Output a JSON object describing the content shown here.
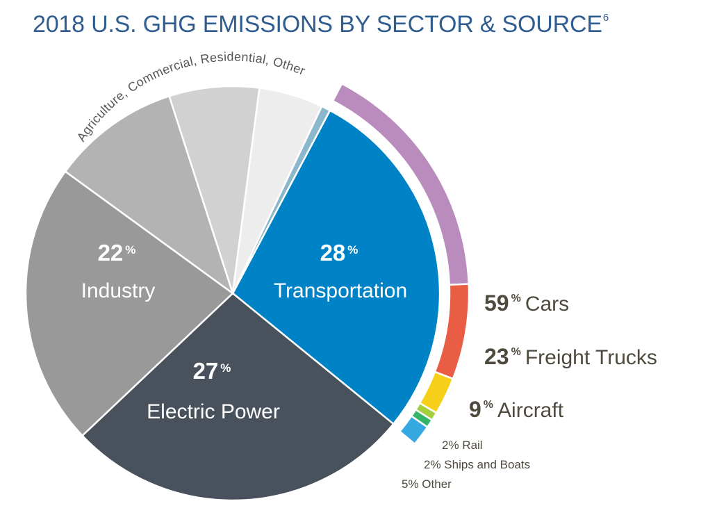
{
  "title": "2018 U.S. GHG EMISSIONS BY SECTOR & SOURCE",
  "title_sup": "6",
  "chart_data": {
    "type": "pie",
    "sectors": [
      {
        "name": "Transportation",
        "pct_value": "28",
        "value": 28,
        "color": "#0083c6",
        "label_color": "#ffffff"
      },
      {
        "name": "Electric Power",
        "pct_value": "27",
        "value": 27,
        "color": "#49525c",
        "label_color": "#ffffff"
      },
      {
        "name": "Industry",
        "pct_value": "22",
        "value": 22,
        "color": "#999999",
        "label_color": "#ffffff"
      },
      {
        "name": "",
        "value": 10,
        "color": "#b3b3b3"
      },
      {
        "name": "",
        "value": 7,
        "color": "#d1d1d1"
      },
      {
        "name": "",
        "value": 5,
        "color": "#ededed"
      },
      {
        "name": "",
        "value": 0.7,
        "color": "#8bb7cc"
      }
    ],
    "arc_label": "Agriculture, Commercial, Residential, Other",
    "percent_sign": "%",
    "transportation_breakdown": [
      {
        "pct": "59",
        "name": "Cars",
        "value": 59,
        "color": "#b98cbd"
      },
      {
        "pct": "23",
        "name": "Freight Trucks",
        "value": 23,
        "color": "#e85d44"
      },
      {
        "pct": "9",
        "name": "Aircraft",
        "value": 9,
        "color": "#f6d018"
      },
      {
        "pct": "2",
        "name": "Rail",
        "value": 2,
        "color": "#a5cf3e",
        "label": "2% Rail"
      },
      {
        "pct": "2",
        "name": "Ships and Boats",
        "value": 2,
        "color": "#35b56a",
        "label": "2% Ships and Boats"
      },
      {
        "pct": "5",
        "name": "Other",
        "value": 5,
        "color": "#37a9e1",
        "label": "5% Other"
      }
    ]
  }
}
